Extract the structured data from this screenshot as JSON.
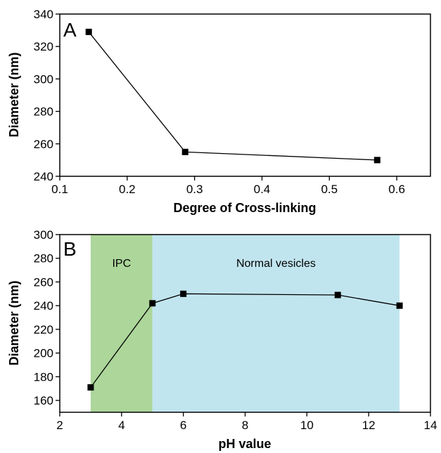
{
  "chart_data": [
    {
      "type": "line",
      "panel_label": "A",
      "xlabel": "Degree of Cross-linking",
      "ylabel": "Diameter (nm)",
      "xlim": [
        0.1,
        0.65
      ],
      "ylim": [
        240,
        340
      ],
      "xticks": [
        "0.1",
        "0.2",
        "0.3",
        "0.4",
        "0.5",
        "0.6"
      ],
      "yticks": [
        "240",
        "260",
        "280",
        "300",
        "320",
        "340"
      ],
      "x": [
        0.143,
        0.286,
        0.571
      ],
      "y": [
        329,
        255,
        250
      ],
      "marker": "square",
      "color": "#000000",
      "grid": false
    },
    {
      "type": "line",
      "panel_label": "B",
      "xlabel": "pH value",
      "ylabel": "Diameter (nm)",
      "xlim": [
        2,
        14
      ],
      "ylim": [
        150,
        300
      ],
      "xticks": [
        "2",
        "4",
        "6",
        "8",
        "10",
        "12",
        "14"
      ],
      "yticks": [
        "160",
        "180",
        "200",
        "220",
        "240",
        "260",
        "280",
        "300"
      ],
      "x": [
        3,
        5,
        6,
        11,
        13
      ],
      "y": [
        171,
        242,
        250,
        249,
        240
      ],
      "marker": "square",
      "color": "#000000",
      "grid": false,
      "regions": [
        {
          "label": "IPC",
          "x_start": 3,
          "x_end": 5,
          "color": "#acd69a"
        },
        {
          "label": "Normal vesicles",
          "x_start": 5,
          "x_end": 13,
          "color": "#c1e5ef"
        }
      ]
    }
  ]
}
